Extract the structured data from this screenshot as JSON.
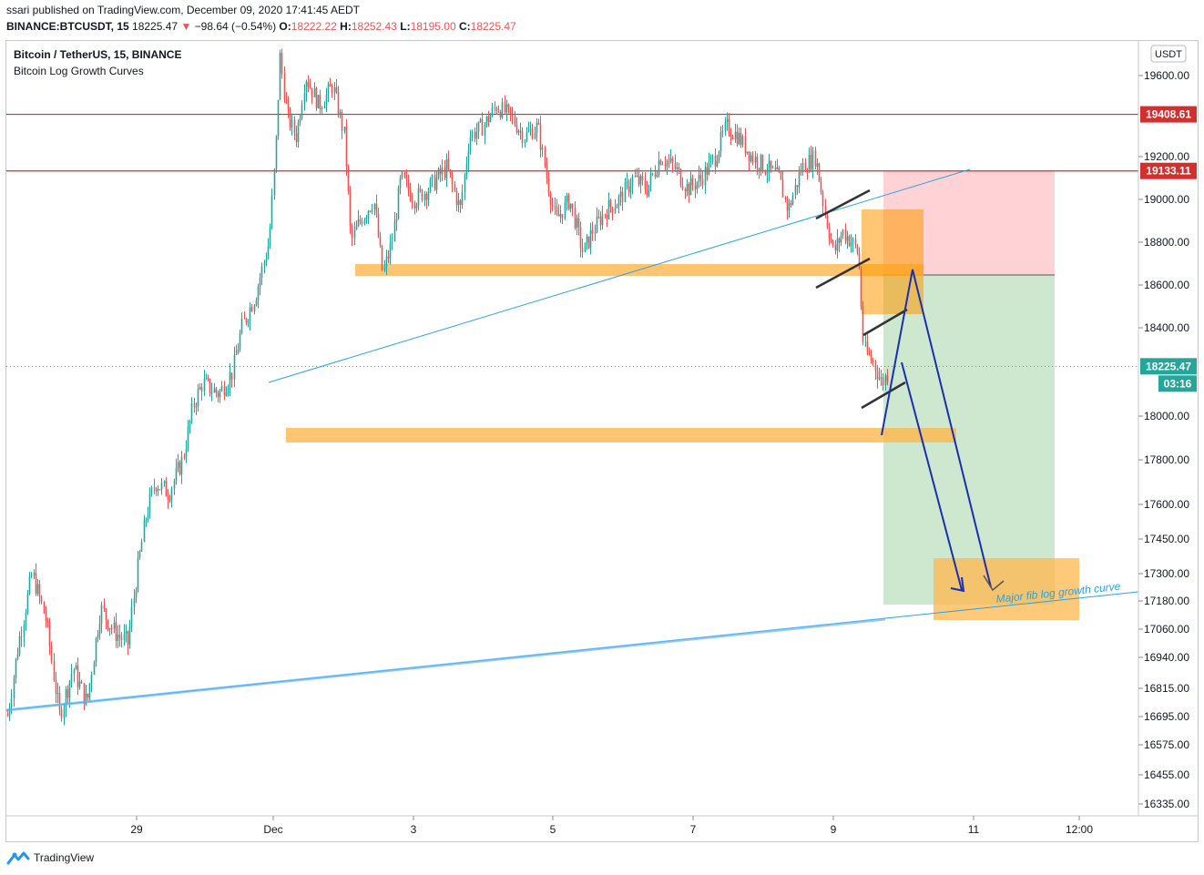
{
  "header": {
    "published": "ssari published on TradingView.com, December 09, 2020 17:41:45 AEDT",
    "symbol": "BINANCE:BTCUSDT, 15",
    "last": "18225.47",
    "change": "−98.64 (−0.54%)",
    "open_label": "O:",
    "open": "18222.22",
    "high_label": "H:",
    "high": "18252.43",
    "low_label": "L:",
    "low": "18195.00",
    "close_label": "C:",
    "close": "18225.47"
  },
  "legend": {
    "title": "Bitcoin / TetherUS, 15, BINANCE",
    "indicator": "Bitcoin Log Growth Curves"
  },
  "footer": {
    "brand": "TradingView"
  },
  "colors": {
    "up": "#26a69a",
    "down": "#ef5350",
    "resistance": "#d32f2f",
    "zone": "#ffb74d",
    "trend": "#29a3e0",
    "arrow": "#1a2fb0",
    "stop": "#ffcdd2",
    "target": "#c8e6c9"
  },
  "chart_data": {
    "type": "candlestick",
    "currency_label": "USDT",
    "y_ticks": [
      "19600.00",
      "19200.00",
      "19000.00",
      "18800.00",
      "18600.00",
      "18400.00",
      "18000.00",
      "17800.00",
      "17600.00",
      "17450.00",
      "17300.00",
      "17180.00",
      "17060.00",
      "16940.00",
      "16815.00",
      "16695.00",
      "16575.00",
      "16455.00",
      "16335.00"
    ],
    "x_ticks": [
      "29",
      "Dec",
      "3",
      "5",
      "7",
      "9",
      "11",
      "12:00"
    ],
    "price_tags": [
      {
        "label": "19408.61",
        "kind": "resistance"
      },
      {
        "label": "19133.11",
        "kind": "resistance"
      },
      {
        "label": "18225.47",
        "kind": "last"
      },
      {
        "label": "03:16",
        "kind": "countdown"
      }
    ],
    "horizontal_levels": [
      19408.61,
      19133.11
    ],
    "last_price": 18225.47,
    "annotation": "Major fib log growth curve",
    "series_summary": {
      "low": 16335,
      "high": 19860,
      "last": 18225.47
    }
  }
}
